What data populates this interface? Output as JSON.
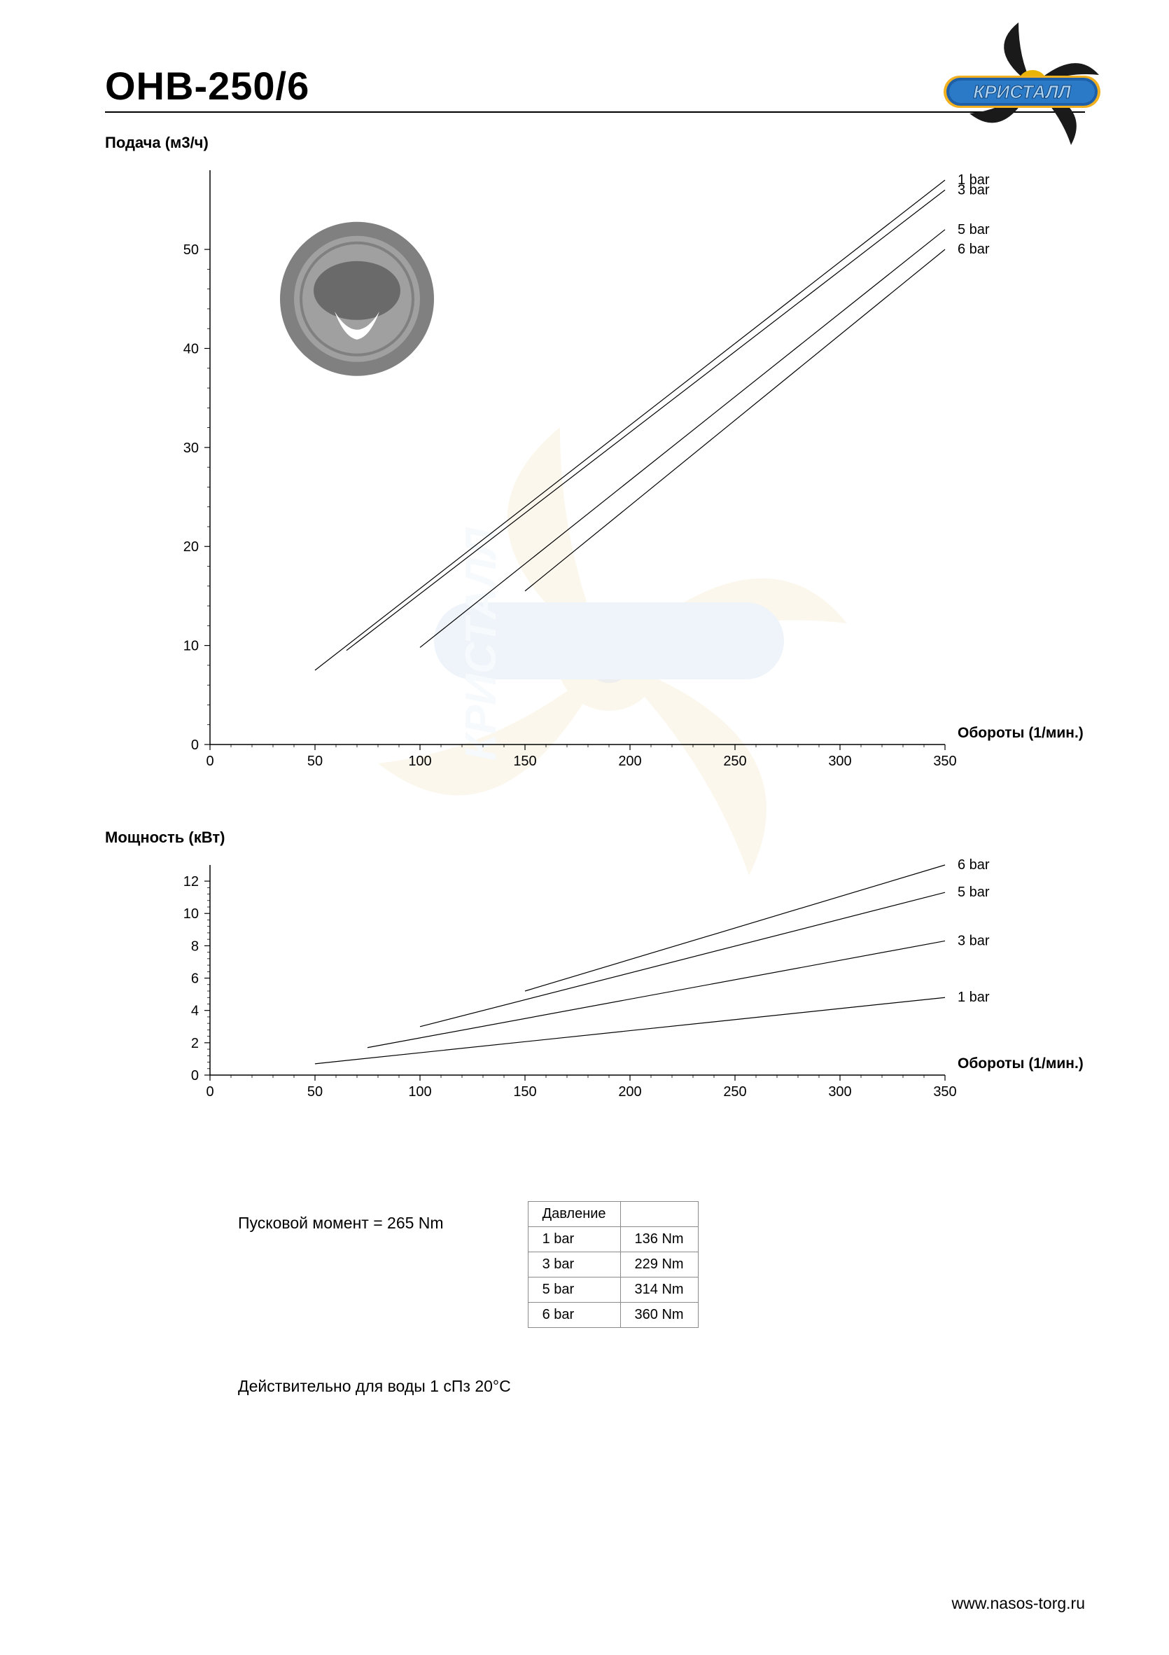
{
  "title": "ОНВ-250/6",
  "brand": "КРИСТАЛЛ",
  "footer_url": "www.nasos-torg.ru",
  "chart1": {
    "type": "line",
    "title": "Подача (м3/ч)",
    "xlabel": "Обороты (1/мин.)",
    "xlim": [
      0,
      350
    ],
    "xtick_step": 50,
    "ylim": [
      0,
      58
    ],
    "yticks": [
      0,
      10,
      20,
      30,
      40,
      50
    ],
    "series": [
      {
        "label": "1 bar",
        "points": [
          [
            50,
            7.5
          ],
          [
            350,
            57
          ]
        ],
        "color": "#000000",
        "width": 1.2
      },
      {
        "label": "3 bar",
        "points": [
          [
            65,
            9.5
          ],
          [
            350,
            56
          ]
        ],
        "color": "#000000",
        "width": 1.2
      },
      {
        "label": "5 bar",
        "points": [
          [
            100,
            9.8
          ],
          [
            350,
            52
          ]
        ],
        "color": "#000000",
        "width": 1.2
      },
      {
        "label": "6 bar",
        "points": [
          [
            150,
            15.5
          ],
          [
            350,
            50
          ]
        ],
        "color": "#000000",
        "width": 1.2
      }
    ],
    "line_color": "#000000",
    "line_width": 1.2,
    "tick_fontsize": 20,
    "label_fontsize": 21,
    "background_color": "#ffffff",
    "axis_color": "#000000"
  },
  "chart2": {
    "type": "line",
    "title": "Мощность (кВт)",
    "xlabel": "Обороты (1/мин.)",
    "xlim": [
      0,
      350
    ],
    "xtick_step": 50,
    "ylim": [
      0,
      13
    ],
    "yticks": [
      0,
      2,
      4,
      6,
      8,
      10,
      12
    ],
    "series": [
      {
        "label": "6 bar",
        "points": [
          [
            150,
            5.2
          ],
          [
            350,
            13
          ]
        ],
        "color": "#000000",
        "width": 1.2
      },
      {
        "label": "5 bar",
        "points": [
          [
            100,
            3.0
          ],
          [
            350,
            11.3
          ]
        ],
        "color": "#000000",
        "width": 1.2
      },
      {
        "label": "3 bar",
        "points": [
          [
            75,
            1.7
          ],
          [
            350,
            8.3
          ]
        ],
        "color": "#000000",
        "width": 1.2
      },
      {
        "label": "1 bar",
        "points": [
          [
            50,
            0.7
          ],
          [
            350,
            4.8
          ]
        ],
        "color": "#000000",
        "width": 1.2
      }
    ],
    "line_color": "#000000",
    "line_width": 1.2,
    "tick_fontsize": 20,
    "label_fontsize": 21,
    "background_color": "#ffffff",
    "axis_color": "#000000"
  },
  "startup_moment_label": "Пусковой момент = 265 Nm",
  "torque_table": {
    "header": "Давление",
    "rows": [
      [
        "1 bar",
        "136 Nm"
      ],
      [
        "3 bar",
        "229 Nm"
      ],
      [
        "5 bar",
        "314 Nm"
      ],
      [
        "6 bar",
        "360 Nm"
      ]
    ],
    "border_color": "#8a8a8a",
    "fontsize": 20
  },
  "validity_note": "Действительно для воды 1 сПз 20°С",
  "logo_colors": {
    "impeller_dark": "#1a1a1a",
    "impeller_gold": "#eab308",
    "banner_outer": "#1e5fa8",
    "banner_inner": "#2a7ac8",
    "banner_stroke": "#f0b020",
    "text_fill": "#a8d0f0",
    "text_stroke": "#083060"
  },
  "watermark_opacity": 0.08,
  "pump_icon_colors": {
    "outer_ring": "#808080",
    "inner_bg": "#a0a0a0",
    "rotor": "#6a6a6a",
    "tooth": "#ffffff"
  }
}
